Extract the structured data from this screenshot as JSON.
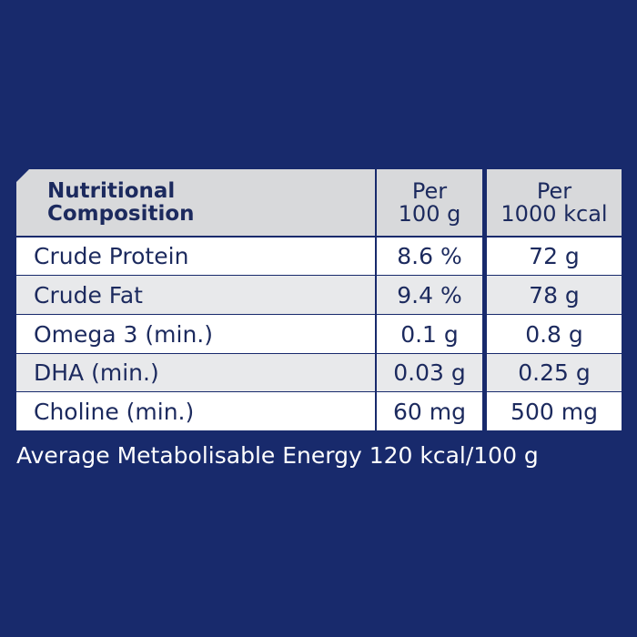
{
  "table": {
    "header": [
      [
        "Nutritional",
        "Composition"
      ],
      [
        "Per",
        "100 g"
      ],
      [
        "Per",
        "1000 kcal"
      ]
    ],
    "rows": [
      [
        "Crude Protein",
        "8.6 %",
        "72 g"
      ],
      [
        "Crude Fat",
        "9.4 %",
        "78 g"
      ],
      [
        "Omega 3 (min.)",
        "0.1 g",
        "0.8 g"
      ],
      [
        "DHA (min.)",
        "0.03 g",
        "0.25 g"
      ],
      [
        "Choline (min.)",
        "60 mg",
        "500 mg"
      ]
    ]
  },
  "footer": "Average Metabolisable Energy 120 kcal/100 g"
}
